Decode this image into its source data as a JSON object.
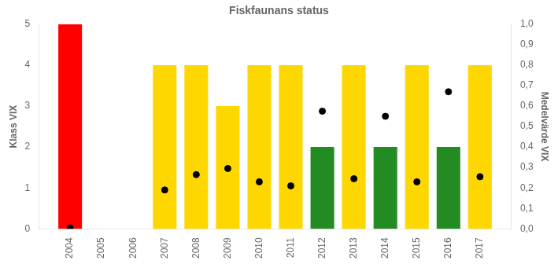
{
  "chart_data": {
    "type": "bar",
    "title": "Fiskfaunans status",
    "y_label": "Klass VIX",
    "y2_label": "Medelvärde VIX",
    "x": [
      2004,
      2005,
      2006,
      2007,
      2008,
      2009,
      2010,
      2011,
      2012,
      2013,
      2014,
      2015,
      2016,
      2017
    ],
    "series": [
      {
        "type": "bar",
        "values": [
          5,
          0,
          0,
          4,
          4,
          3,
          4,
          4,
          2,
          4,
          2,
          4,
          2,
          4
        ],
        "colors": [
          "#FF0000",
          "#FFFFFF",
          "#FFFFFF",
          "#FFD700",
          "#FFD700",
          "#FFD700",
          "#FFD700",
          "#FFD700",
          "#228B22",
          "#FFD700",
          "#228B22",
          "#FFD700",
          "#228B22",
          "#FFD700"
        ]
      },
      {
        "type": "scatter",
        "axis": "y2",
        "marker": "circle",
        "color": "#000000",
        "x": [
          2004,
          2007,
          2008,
          2009,
          2010,
          2011,
          2012,
          2013,
          2014,
          2015,
          2016,
          2017
        ],
        "values": [
          0.005,
          0.19,
          0.265,
          0.295,
          0.23,
          0.21,
          0.575,
          0.245,
          0.55,
          0.23,
          0.67,
          0.255
        ]
      }
    ],
    "xlim": [
      2003.0,
      2018.0
    ],
    "xticks": [
      2004,
      2005,
      2006,
      2007,
      2008,
      2009,
      2010,
      2011,
      2012,
      2013,
      2014,
      2015,
      2016,
      2017
    ],
    "ylim": [
      0,
      5
    ],
    "yticks": [
      0,
      1,
      2,
      3,
      4,
      5
    ],
    "y2lim": [
      0,
      1.0
    ],
    "y2ticks": [
      {
        "value": 0.0,
        "label": "0,0"
      },
      {
        "value": 0.1,
        "label": "0,1"
      },
      {
        "value": 0.2,
        "label": "0,2"
      },
      {
        "value": 0.3,
        "label": "0,3"
      },
      {
        "value": 0.4,
        "label": "0,4"
      },
      {
        "value": 0.5,
        "label": "0,5"
      },
      {
        "value": 0.6,
        "label": "0,6"
      },
      {
        "value": 0.7,
        "label": "0,7"
      },
      {
        "value": 0.8,
        "label": "0,8"
      },
      {
        "value": 0.9,
        "label": "0,9"
      },
      {
        "value": 1.0,
        "label": "1,0"
      }
    ],
    "grid": false
  }
}
